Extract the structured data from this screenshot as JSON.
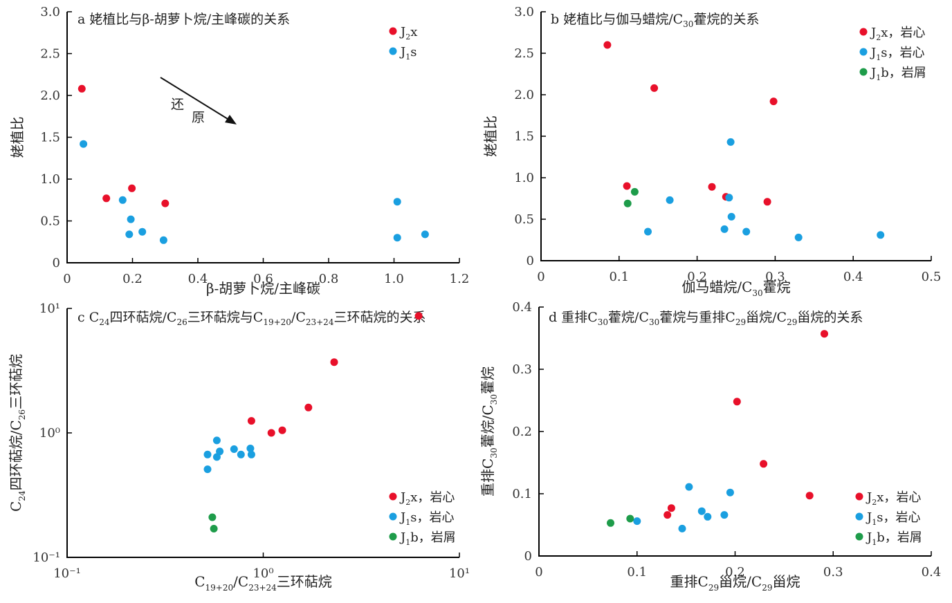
{
  "chart_data": [
    {
      "type": "scatter",
      "title": "a 姥植比与β-胡萝卜烷/主峰碳的关系",
      "xlabel": "β-胡萝卜烷/主峰碳",
      "ylabel": "姥植比",
      "xlim": [
        0,
        1.2
      ],
      "ylim": [
        0,
        3.0
      ],
      "xticks": [
        "0",
        "0.2",
        "0.4",
        "0.6",
        "0.8",
        "1.0",
        "1.2"
      ],
      "yticks": [
        "0",
        "0.5",
        "1.0",
        "1.5",
        "2.0",
        "2.5",
        "3.0"
      ],
      "legend_position": "top-right",
      "annotation": [
        "还",
        "原"
      ],
      "series": [
        {
          "name": "J2x",
          "color": "#e8102a",
          "points": [
            [
              0.045,
              2.08
            ],
            [
              0.12,
              0.77
            ],
            [
              0.198,
              0.89
            ],
            [
              0.3,
              0.71
            ]
          ]
        },
        {
          "name": "J1s",
          "color": "#1a9fe0",
          "points": [
            [
              0.05,
              1.42
            ],
            [
              0.17,
              0.75
            ],
            [
              0.195,
              0.52
            ],
            [
              0.19,
              0.34
            ],
            [
              0.23,
              0.37
            ],
            [
              0.295,
              0.27
            ],
            [
              1.01,
              0.73
            ],
            [
              1.01,
              0.3
            ],
            [
              1.095,
              0.34
            ]
          ]
        }
      ]
    },
    {
      "type": "scatter",
      "title": "b 姥植比与伽马蜡烷/C30藿烷的关系",
      "xlabel": "伽马蜡烷/C30藿烷",
      "ylabel": "姥植比",
      "xlim": [
        0,
        0.5
      ],
      "ylim": [
        0,
        3.0
      ],
      "xticks": [
        "0",
        "0.1",
        "0.2",
        "0.3",
        "0.4",
        "0.5"
      ],
      "yticks": [
        "0",
        "0.5",
        "1.0",
        "1.5",
        "2.0",
        "2.5",
        "3.0"
      ],
      "legend_position": "top-right",
      "series": [
        {
          "name": "J2x，岩心",
          "color": "#e8102a",
          "points": [
            [
              0.085,
              2.6
            ],
            [
              0.145,
              2.08
            ],
            [
              0.298,
              1.92
            ],
            [
              0.11,
              0.9
            ],
            [
              0.219,
              0.89
            ],
            [
              0.237,
              0.77
            ],
            [
              0.29,
              0.71
            ]
          ]
        },
        {
          "name": "J1s，岩心",
          "color": "#1a9fe0",
          "points": [
            [
              0.243,
              1.43
            ],
            [
              0.165,
              0.73
            ],
            [
              0.241,
              0.76
            ],
            [
              0.244,
              0.53
            ],
            [
              0.137,
              0.35
            ],
            [
              0.235,
              0.38
            ],
            [
              0.263,
              0.35
            ],
            [
              0.33,
              0.28
            ],
            [
              0.435,
              0.31
            ]
          ]
        },
        {
          "name": "J1b，岩屑",
          "color": "#1e9c4a",
          "points": [
            [
              0.12,
              0.83
            ],
            [
              0.111,
              0.69
            ]
          ]
        }
      ]
    },
    {
      "type": "scatter",
      "title": "c C24四环萜烷/C26三环萜烷与C19+20/C23+24三环萜烷的关系",
      "xlabel": "C19+20/C23+24三环萜烷",
      "ylabel": "C24四环萜烷/C26三环萜烷",
      "xscale": "log",
      "yscale": "log",
      "xlim": [
        0.1,
        10
      ],
      "ylim": [
        0.1,
        10
      ],
      "xticks": [
        "10⁻¹",
        "10⁰",
        "10¹"
      ],
      "yticks": [
        "10⁻¹",
        "10⁰",
        "10¹"
      ],
      "legend_position": "bottom-right",
      "series": [
        {
          "name": "J2x，岩心",
          "color": "#e8102a",
          "points": [
            [
              6.2,
              8.7
            ],
            [
              2.3,
              3.7
            ],
            [
              1.7,
              1.6
            ],
            [
              0.87,
              1.25
            ],
            [
              1.25,
              1.05
            ],
            [
              1.1,
              1.0
            ]
          ]
        },
        {
          "name": "J1s，岩心",
          "color": "#1a9fe0",
          "points": [
            [
              0.58,
              0.87
            ],
            [
              0.6,
              0.71
            ],
            [
              0.71,
              0.74
            ],
            [
              0.52,
              0.67
            ],
            [
              0.58,
              0.64
            ],
            [
              0.86,
              0.75
            ],
            [
              0.77,
              0.67
            ],
            [
              0.87,
              0.67
            ],
            [
              0.52,
              0.51
            ]
          ]
        },
        {
          "name": "J1b，岩屑",
          "color": "#1e9c4a",
          "points": [
            [
              0.55,
              0.21
            ],
            [
              0.56,
              0.17
            ]
          ]
        }
      ]
    },
    {
      "type": "scatter",
      "title": "d 重排C30藿烷/C30藿烷与重排C29甾烷/C29甾烷的关系",
      "xlabel": "重排C29甾烷/C29甾烷",
      "ylabel": "重排C30藿烷/C30藿烷",
      "xlim": [
        0,
        0.4
      ],
      "ylim": [
        0,
        0.4
      ],
      "xticks": [
        "0",
        "0.1",
        "0.2",
        "0.3",
        "0.4"
      ],
      "yticks": [
        "0",
        "0.1",
        "0.2",
        "0.3",
        "0.4"
      ],
      "legend_position": "bottom-right",
      "series": [
        {
          "name": "J2x，岩心",
          "color": "#e8102a",
          "points": [
            [
              0.291,
              0.357
            ],
            [
              0.202,
              0.248
            ],
            [
              0.229,
              0.148
            ],
            [
              0.276,
              0.097
            ],
            [
              0.135,
              0.077
            ],
            [
              0.131,
              0.066
            ]
          ]
        },
        {
          "name": "J1s，岩心",
          "color": "#1a9fe0",
          "points": [
            [
              0.153,
              0.111
            ],
            [
              0.195,
              0.102
            ],
            [
              0.166,
              0.072
            ],
            [
              0.172,
              0.063
            ],
            [
              0.189,
              0.066
            ],
            [
              0.1,
              0.056
            ],
            [
              0.146,
              0.044
            ]
          ]
        },
        {
          "name": "J1b，岩屑",
          "color": "#1e9c4a",
          "points": [
            [
              0.073,
              0.053
            ],
            [
              0.093,
              0.06
            ]
          ]
        }
      ]
    }
  ]
}
